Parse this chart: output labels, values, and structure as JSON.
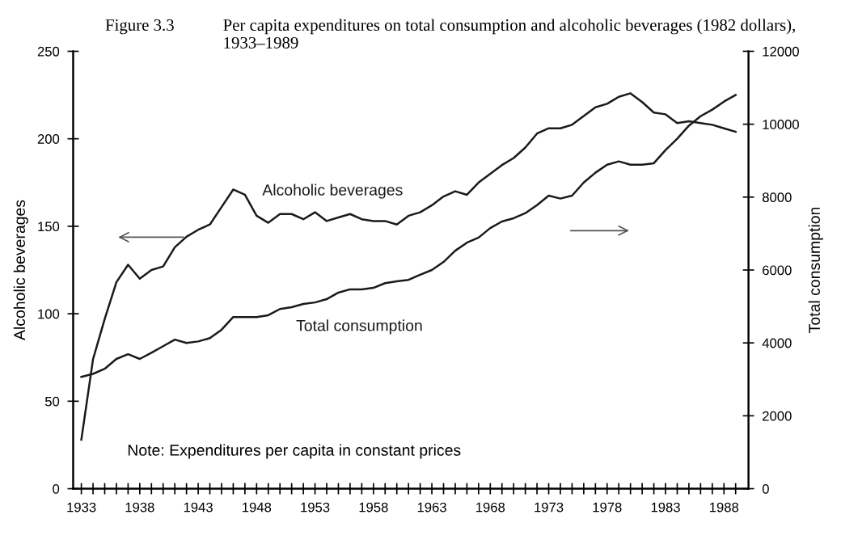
{
  "chart_data": {
    "type": "line",
    "title": "Figure 3.3",
    "subtitle": "Per capita expenditures on total consumption and alcoholic beverages (1982 dollars), 1933–1989",
    "ylabel": "Alcoholic beverages",
    "y2label": "Total consumption",
    "annotations": [
      "Note: Expenditures per capita in constant prices"
    ],
    "x": [
      1933,
      1934,
      1935,
      1936,
      1937,
      1938,
      1939,
      1940,
      1941,
      1942,
      1943,
      1944,
      1945,
      1946,
      1947,
      1948,
      1949,
      1950,
      1951,
      1952,
      1953,
      1954,
      1955,
      1956,
      1957,
      1958,
      1959,
      1960,
      1961,
      1962,
      1963,
      1964,
      1965,
      1966,
      1967,
      1968,
      1969,
      1970,
      1971,
      1972,
      1973,
      1974,
      1975,
      1976,
      1977,
      1978,
      1979,
      1980,
      1981,
      1982,
      1983,
      1984,
      1985,
      1986,
      1987,
      1988,
      1989
    ],
    "series": [
      {
        "name": "Alcoholic beverages",
        "color": "#1a1a1a",
        "values": [
          28,
          74,
          97,
          118,
          128,
          120,
          125,
          127,
          138,
          144,
          148,
          151,
          161,
          171,
          168,
          156,
          152,
          157,
          157,
          154,
          158,
          153,
          155,
          157,
          154,
          153,
          153,
          151,
          156,
          158,
          162,
          167,
          170,
          168,
          175,
          180,
          185,
          189,
          195,
          203,
          206,
          206,
          208,
          213,
          218,
          220,
          224,
          226,
          221,
          215,
          214,
          209,
          210,
          209,
          208,
          206,
          204
        ]
      },
      {
        "name": "Total consumption",
        "color": "#1a1a1a",
        "axis": "y2",
        "values": [
          3070,
          3150,
          3290,
          3560,
          3690,
          3560,
          3730,
          3910,
          4090,
          4000,
          4040,
          4130,
          4360,
          4710,
          4710,
          4710,
          4760,
          4930,
          4980,
          5070,
          5110,
          5200,
          5380,
          5470,
          5470,
          5510,
          5640,
          5690,
          5730,
          5870,
          6000,
          6220,
          6530,
          6750,
          6890,
          7150,
          7330,
          7420,
          7560,
          7780,
          8040,
          7960,
          8040,
          8400,
          8670,
          8890,
          8980,
          8890,
          8890,
          8930,
          9290,
          9600,
          9960,
          10220,
          10400,
          10620,
          10800
        ]
      }
    ],
    "xlim": [
      1932.3,
      1990.1
    ],
    "xticks": [
      1933,
      {
        "value": 1934,
        "label": null
      },
      {
        "value": 1935,
        "label": null
      },
      {
        "value": 1936,
        "label": null
      },
      {
        "value": 1937,
        "label": null
      },
      1938,
      {
        "value": 1939,
        "label": null
      },
      {
        "value": 1940,
        "label": null
      },
      {
        "value": 1941,
        "label": null
      },
      {
        "value": 1942,
        "label": null
      },
      1943,
      {
        "value": 1944,
        "label": null
      },
      {
        "value": 1945,
        "label": null
      },
      {
        "value": 1946,
        "label": null
      },
      {
        "value": 1947,
        "label": null
      },
      1948,
      {
        "value": 1949,
        "label": null
      },
      {
        "value": 1950,
        "label": null
      },
      {
        "value": 1951,
        "label": null
      },
      {
        "value": 1952,
        "label": null
      },
      1953,
      {
        "value": 1954,
        "label": null
      },
      {
        "value": 1955,
        "label": null
      },
      {
        "value": 1956,
        "label": null
      },
      {
        "value": 1957,
        "label": null
      },
      1958,
      {
        "value": 1959,
        "label": null
      },
      {
        "value": 1960,
        "label": null
      },
      {
        "value": 1961,
        "label": null
      },
      {
        "value": 1962,
        "label": null
      },
      1963,
      {
        "value": 1964,
        "label": null
      },
      {
        "value": 1965,
        "label": null
      },
      {
        "value": 1966,
        "label": null
      },
      {
        "value": 1967,
        "label": null
      },
      1968,
      {
        "value": 1969,
        "label": null
      },
      {
        "value": 1970,
        "label": null
      },
      {
        "value": 1971,
        "label": null
      },
      {
        "value": 1972,
        "label": null
      },
      1973,
      {
        "value": 1974,
        "label": null
      },
      {
        "value": 1975,
        "label": null
      },
      {
        "value": 1976,
        "label": null
      },
      {
        "value": 1977,
        "label": null
      },
      1978,
      {
        "value": 1979,
        "label": null
      },
      {
        "value": 1980,
        "label": null
      },
      {
        "value": 1981,
        "label": null
      },
      {
        "value": 1982,
        "label": null
      },
      1983,
      {
        "value": 1984,
        "label": null
      },
      {
        "value": 1985,
        "label": null
      },
      {
        "value": 1986,
        "label": null
      },
      {
        "value": 1987,
        "label": null
      },
      1988,
      {
        "value": 1989,
        "label": null
      }
    ],
    "ylim": [
      0,
      250
    ],
    "yticks": [
      0,
      50,
      100,
      150,
      200,
      250
    ],
    "y2lim": [
      0,
      12000
    ],
    "y2ticks": [
      0,
      2000,
      4000,
      6000,
      8000,
      10000,
      12000
    ],
    "grid": false,
    "legend": false,
    "marker": "none",
    "line_style": "solid"
  }
}
